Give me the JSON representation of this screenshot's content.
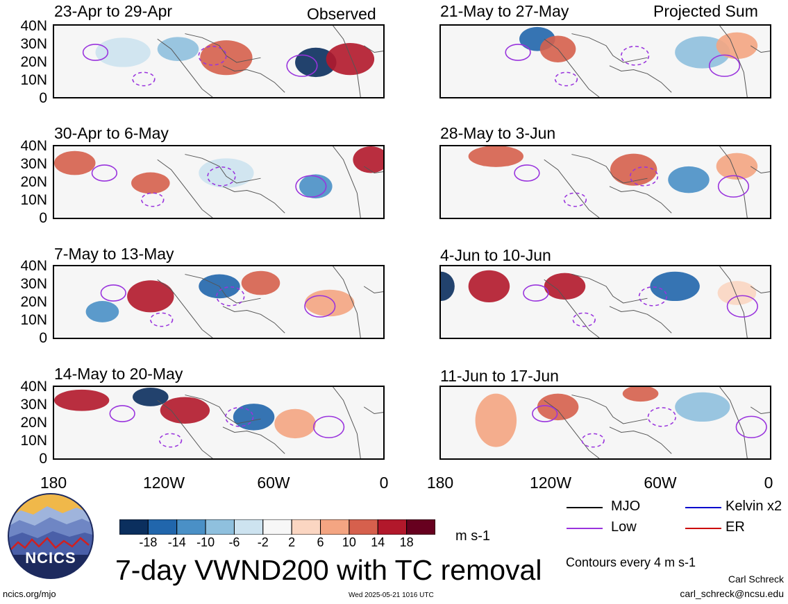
{
  "figure": {
    "title": "7-day VWND200 with TC removal",
    "column_headers": {
      "left": "Observed",
      "right": "Projected Sum"
    },
    "lat_labels": [
      "40N",
      "30N",
      "20N",
      "10N",
      "0"
    ],
    "lon_labels": [
      "180",
      "120W",
      "60W",
      "0"
    ],
    "panels_left": [
      {
        "title": "23-Apr to 29-Apr"
      },
      {
        "title": "30-Apr to 6-May"
      },
      {
        "title": "7-May to 13-May"
      },
      {
        "title": "14-May to 20-May"
      }
    ],
    "panels_right": [
      {
        "title": "21-May to 27-May"
      },
      {
        "title": "28-May to 3-Jun"
      },
      {
        "title": "4-Jun to 10-Jun"
      },
      {
        "title": "11-Jun to 17-Jun"
      }
    ]
  },
  "colorbar": {
    "labels": [
      "-18",
      "-14",
      "-10",
      "-6",
      "-2",
      "2",
      "6",
      "10",
      "14",
      "18"
    ],
    "colors": [
      "#0b2f5e",
      "#2166ac",
      "#4a90c6",
      "#8fc0de",
      "#cde3f0",
      "#f7f7f7",
      "#fbd6c2",
      "#f4a582",
      "#d6604d",
      "#b2182b",
      "#67001f"
    ],
    "unit": "m s-1"
  },
  "legend": {
    "items": [
      {
        "label": "MJO",
        "color": "#000000"
      },
      {
        "label": "Kelvin x2",
        "color": "#0000cc"
      },
      {
        "label": "Low",
        "color": "#9933dd"
      },
      {
        "label": "ER",
        "color": "#cc0000"
      }
    ],
    "contour_note": "Contours every 4 m s-1"
  },
  "footer": {
    "website": "ncics.org/mjo",
    "timestamp": "Wed 2025-05-21 1016 UTC",
    "author": "Carl Schreck",
    "email": "carl_schreck@ncsu.edu"
  },
  "logo": {
    "text": "NCICS"
  }
}
